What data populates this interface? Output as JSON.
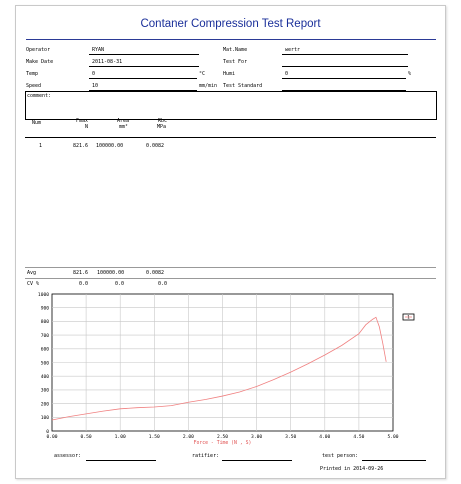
{
  "report": {
    "title": "Contaner Compression Test Report"
  },
  "info": {
    "operator_label": "Operator",
    "operator_value": "RYAN",
    "make_date_label": "Make Date",
    "make_date_value": "2011-08-31",
    "temp_label": "Temp",
    "temp_value": "0",
    "temp_unit": "°C",
    "speed_label": "Speed",
    "speed_value": "10",
    "speed_unit": "mm/min",
    "mat_name_label": "Mat.Name",
    "mat_name_value": "wertr",
    "test_for_label": "Test For",
    "test_for_value": "",
    "humi_label": "Humi",
    "humi_value": "0",
    "humi_unit": "%",
    "test_standard_label": "Test Standard",
    "test_standard_value": "",
    "comment_label": "comment:"
  },
  "table": {
    "headers": [
      {
        "top": "Num",
        "bottom": ""
      },
      {
        "top": "Fmax",
        "bottom": "N"
      },
      {
        "top": "Area",
        "bottom": "mm²"
      },
      {
        "top": "Rbc",
        "bottom": "MPa"
      }
    ],
    "rows": [
      {
        "num": "1",
        "fmax": "821.6",
        "area": "100000.00",
        "rbc": "0.0082"
      }
    ],
    "avg": {
      "label": "Avg",
      "fmax": "821.6",
      "area": "100000.00",
      "rbc": "0.0082"
    },
    "cv": {
      "label": "CV %",
      "fmax": "0.0",
      "area": "0.0",
      "rbc": "0.0"
    }
  },
  "chart_data": {
    "type": "line",
    "xlabel": "Force - Time  (N , S)",
    "ylabel": "",
    "xlim": [
      0,
      5.0
    ],
    "ylim": [
      0,
      1000
    ],
    "x_ticks": [
      "0.00",
      "0.50",
      "1.00",
      "1.50",
      "2.00",
      "2.50",
      "3.00",
      "3.50",
      "4.00",
      "4.50",
      "5.00"
    ],
    "y_ticks": [
      "0",
      "100",
      "200",
      "300",
      "400",
      "500",
      "600",
      "700",
      "800",
      "900",
      "1000"
    ],
    "grid": true,
    "line_color": "#f08080",
    "legend_label": "1",
    "series": [
      {
        "name": "1",
        "x": [
          0,
          0.25,
          0.5,
          0.75,
          1.0,
          1.25,
          1.5,
          1.75,
          2.0,
          2.25,
          2.5,
          2.75,
          3.0,
          3.25,
          3.5,
          3.75,
          4.0,
          4.25,
          4.5,
          4.6,
          4.7,
          4.75,
          4.8,
          4.85,
          4.9
        ],
        "y": [
          80,
          105,
          125,
          145,
          162,
          170,
          175,
          185,
          210,
          230,
          255,
          285,
          325,
          375,
          430,
          490,
          555,
          625,
          710,
          775,
          815,
          830,
          760,
          640,
          505
        ]
      }
    ]
  },
  "signatures": {
    "assessor_label": "assessor:",
    "ratifier_label": "ratifier:",
    "test_person_label": "test person:",
    "printed": "Printed in 2014-09-26"
  }
}
